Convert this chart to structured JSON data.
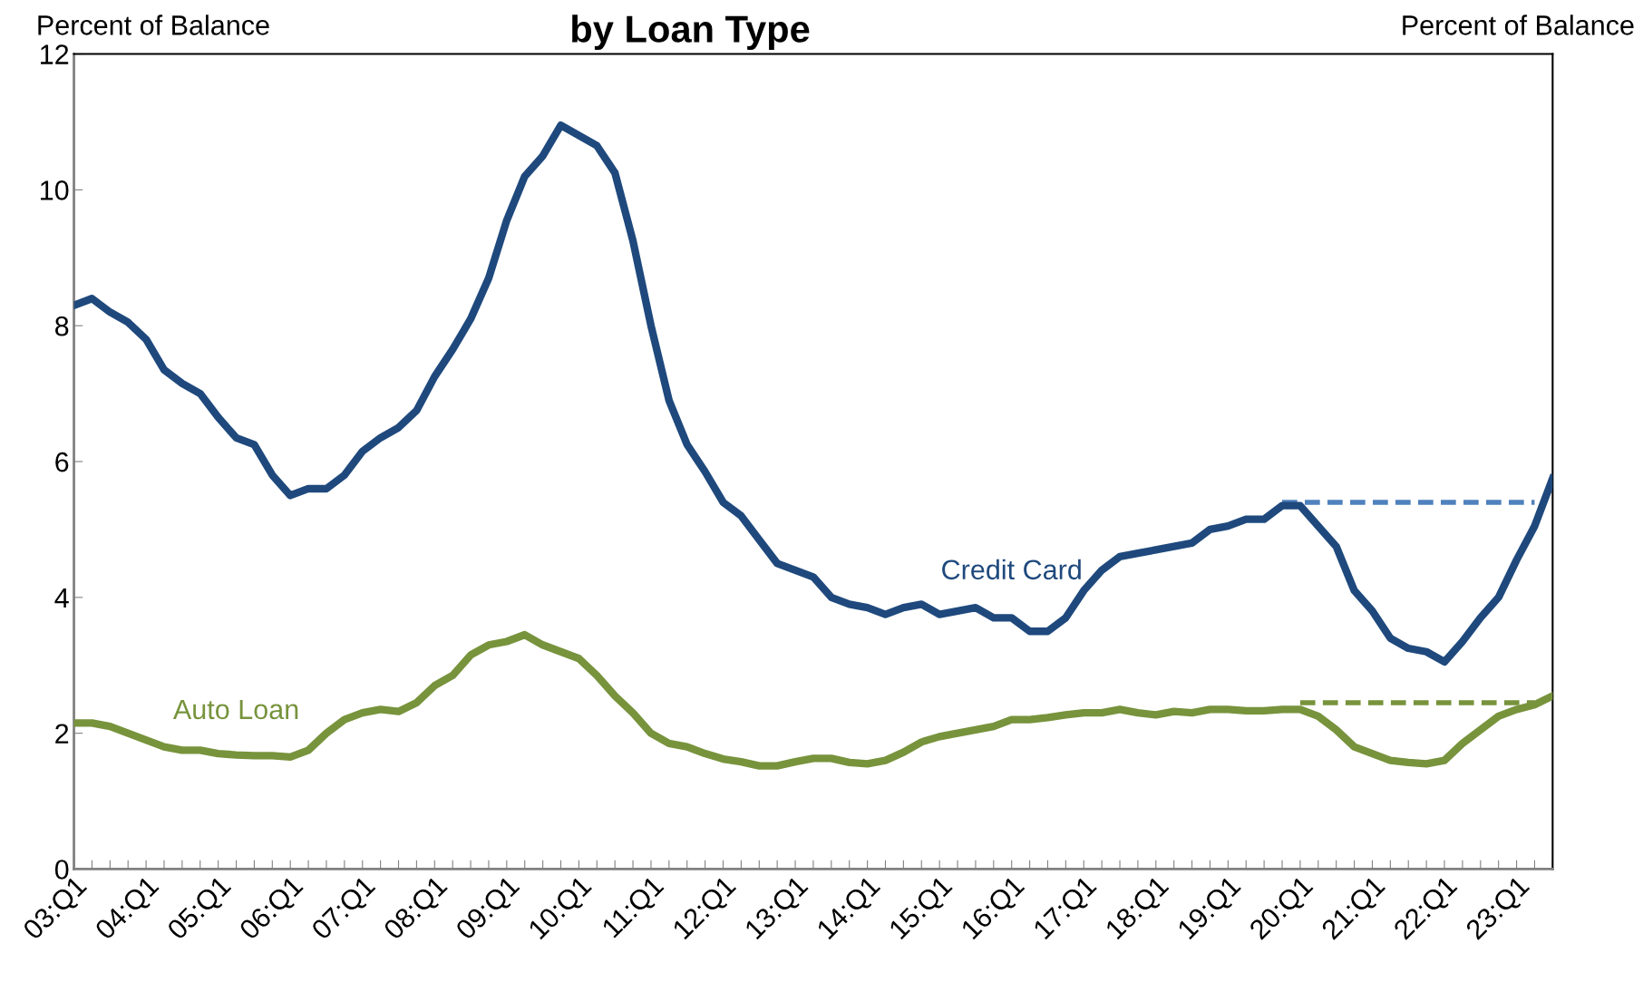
{
  "chart_data": {
    "type": "line",
    "title": "by Loan Type",
    "ylabel": "Percent of Balance",
    "annotations": [
      "Percent of Balance"
    ],
    "categories": [
      "03:Q1",
      null,
      null,
      null,
      "04:Q1",
      null,
      null,
      null,
      "05:Q1",
      null,
      null,
      null,
      "06:Q1",
      null,
      null,
      null,
      "07:Q1",
      null,
      null,
      null,
      "08:Q1",
      null,
      null,
      null,
      "09:Q1",
      null,
      null,
      null,
      "10:Q1",
      null,
      null,
      null,
      "11:Q1",
      null,
      null,
      null,
      "12:Q1",
      null,
      null,
      null,
      "13:Q1",
      null,
      null,
      null,
      "14:Q1",
      null,
      null,
      null,
      "15:Q1",
      null,
      null,
      null,
      "16:Q1",
      null,
      null,
      null,
      "17:Q1",
      null,
      null,
      null,
      "18:Q1",
      null,
      null,
      null,
      "19:Q1",
      null,
      null,
      null,
      "20:Q1",
      null,
      null,
      null,
      "21:Q1",
      null,
      null,
      null,
      "22:Q1",
      null,
      null,
      null,
      "23:Q1",
      null,
      null
    ],
    "series": [
      {
        "name": "Credit Card",
        "color": "#1f497d",
        "values": [
          8.3,
          8.4,
          8.2,
          8.05,
          7.8,
          7.35,
          7.15,
          7.0,
          6.65,
          6.35,
          6.25,
          5.8,
          5.5,
          5.6,
          5.6,
          5.8,
          6.15,
          6.35,
          6.5,
          6.75,
          7.25,
          7.65,
          8.1,
          8.7,
          9.55,
          10.2,
          10.5,
          10.95,
          10.8,
          10.65,
          10.25,
          9.25,
          8.0,
          6.9,
          6.25,
          5.85,
          5.4,
          5.2,
          4.85,
          4.5,
          4.4,
          4.3,
          4.0,
          3.9,
          3.85,
          3.75,
          3.85,
          3.9,
          3.75,
          3.8,
          3.85,
          3.7,
          3.7,
          3.5,
          3.5,
          3.7,
          4.1,
          4.4,
          4.6,
          4.65,
          4.7,
          4.75,
          4.8,
          5.0,
          5.05,
          5.15,
          5.15,
          5.35,
          5.35,
          5.05,
          4.75,
          4.1,
          3.8,
          3.4,
          3.25,
          3.2,
          3.05,
          3.35,
          3.7,
          4.0,
          4.55,
          5.05,
          5.75
        ]
      },
      {
        "name": "Auto Loan",
        "color": "#77933c",
        "values": [
          2.15,
          2.15,
          2.1,
          2.0,
          1.9,
          1.8,
          1.75,
          1.75,
          1.7,
          1.68,
          1.67,
          1.67,
          1.65,
          1.75,
          2.0,
          2.2,
          2.3,
          2.35,
          2.32,
          2.45,
          2.7,
          2.85,
          3.15,
          3.3,
          3.35,
          3.45,
          3.3,
          3.2,
          3.1,
          2.85,
          2.55,
          2.3,
          2.0,
          1.85,
          1.8,
          1.7,
          1.62,
          1.58,
          1.52,
          1.52,
          1.58,
          1.63,
          1.63,
          1.57,
          1.55,
          1.6,
          1.72,
          1.87,
          1.95,
          2.0,
          2.05,
          2.1,
          2.2,
          2.2,
          2.23,
          2.27,
          2.3,
          2.3,
          2.35,
          2.3,
          2.27,
          2.32,
          2.3,
          2.35,
          2.35,
          2.33,
          2.33,
          2.35,
          2.35,
          2.25,
          2.05,
          1.8,
          1.7,
          1.6,
          1.57,
          1.55,
          1.6,
          1.85,
          2.05,
          2.25,
          2.35,
          2.42,
          2.55
        ]
      },
      {
        "color": "#4f81bd",
        "line_style": "dashed",
        "values": [
          null,
          null,
          null,
          null,
          null,
          null,
          null,
          null,
          null,
          null,
          null,
          null,
          null,
          null,
          null,
          null,
          null,
          null,
          null,
          null,
          null,
          null,
          null,
          null,
          null,
          null,
          null,
          null,
          null,
          null,
          null,
          null,
          null,
          null,
          null,
          null,
          null,
          null,
          null,
          null,
          null,
          null,
          null,
          null,
          null,
          null,
          null,
          null,
          null,
          null,
          null,
          null,
          null,
          null,
          null,
          null,
          null,
          null,
          null,
          null,
          null,
          null,
          null,
          null,
          null,
          null,
          null,
          5.4,
          5.4,
          5.4,
          5.4,
          5.4,
          5.4,
          5.4,
          5.4,
          5.4,
          5.4,
          5.4,
          5.4,
          5.4,
          5.4,
          5.4,
          null
        ]
      },
      {
        "color": "#77933c",
        "line_style": "dashed",
        "values": [
          null,
          null,
          null,
          null,
          null,
          null,
          null,
          null,
          null,
          null,
          null,
          null,
          null,
          null,
          null,
          null,
          null,
          null,
          null,
          null,
          null,
          null,
          null,
          null,
          null,
          null,
          null,
          null,
          null,
          null,
          null,
          null,
          null,
          null,
          null,
          null,
          null,
          null,
          null,
          null,
          null,
          null,
          null,
          null,
          null,
          null,
          null,
          null,
          null,
          null,
          null,
          null,
          null,
          null,
          null,
          null,
          null,
          null,
          null,
          null,
          null,
          null,
          null,
          null,
          null,
          null,
          null,
          null,
          2.45,
          2.45,
          2.45,
          2.45,
          2.45,
          2.45,
          2.45,
          2.45,
          2.45,
          2.45,
          2.45,
          2.45,
          2.45,
          2.45,
          null
        ]
      }
    ],
    "ylim": [
      0,
      12
    ],
    "yticks": [
      0,
      2,
      4,
      6,
      8,
      10,
      12
    ],
    "grid": false,
    "marker": "none",
    "line_style": "solid"
  }
}
